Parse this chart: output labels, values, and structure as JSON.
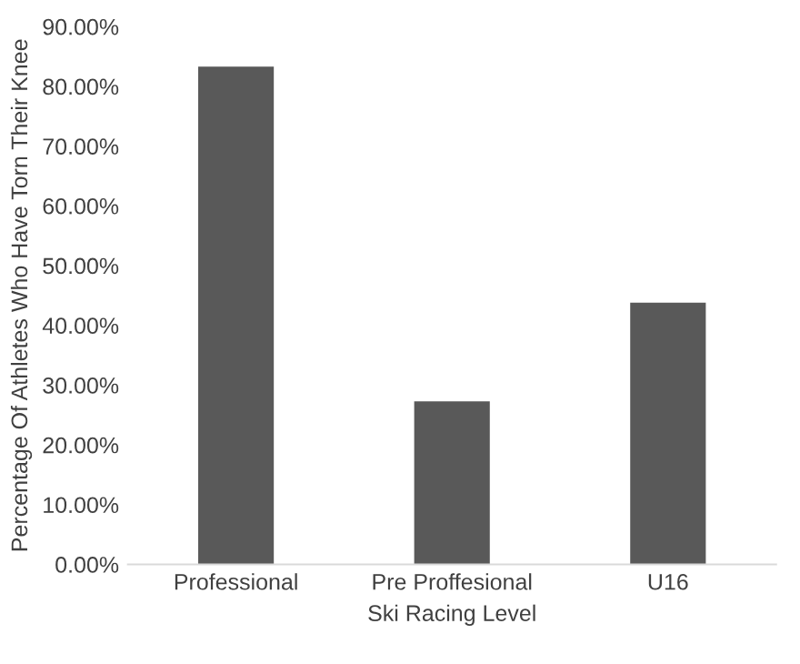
{
  "chart_data": {
    "type": "bar",
    "xlabel": "Ski Racing Level",
    "ylabel": "Percentage Of Athletes Who Have Torn Their Knee",
    "categories": [
      "Professional",
      "Pre Proffesional",
      "U16"
    ],
    "values": [
      83.3,
      27.3,
      43.8
    ],
    "color": "#595959",
    "ylim": [
      0,
      90
    ],
    "yticks": [
      {
        "value": 0,
        "label": "0.00%"
      },
      {
        "value": 10,
        "label": "10.00%"
      },
      {
        "value": 20,
        "label": "20.00%"
      },
      {
        "value": 30,
        "label": "30.00%"
      },
      {
        "value": 40,
        "label": "40.00%"
      },
      {
        "value": 50,
        "label": "50.00%"
      },
      {
        "value": 60,
        "label": "60.00%"
      },
      {
        "value": 70,
        "label": "70.00%"
      },
      {
        "value": 80,
        "label": "80.00%"
      },
      {
        "value": 90,
        "label": "90.00%"
      }
    ],
    "grid": false
  }
}
